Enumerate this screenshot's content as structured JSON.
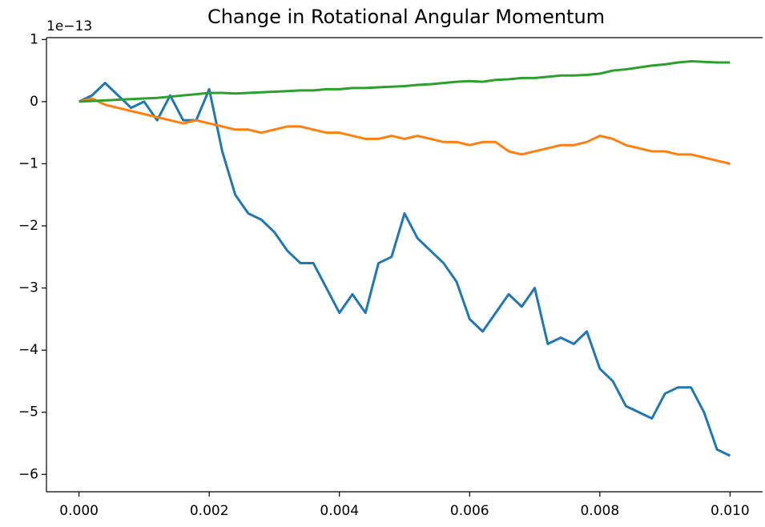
{
  "chart_data": {
    "type": "line",
    "title": "Change in Rotational Angular Momentum",
    "offset_text": "1e−13",
    "x": [
      0,
      0.0002,
      0.0004,
      0.0006,
      0.0008,
      0.001,
      0.0012,
      0.0014,
      0.0016,
      0.0018,
      0.002,
      0.0022,
      0.0024,
      0.0026,
      0.0028,
      0.003,
      0.0032,
      0.0034,
      0.0036,
      0.0038,
      0.004,
      0.0042,
      0.0044,
      0.0046,
      0.0048,
      0.005,
      0.0052,
      0.0054,
      0.0056,
      0.0058,
      0.006,
      0.0062,
      0.0064,
      0.0066,
      0.0068,
      0.007,
      0.0072,
      0.0074,
      0.0076,
      0.0078,
      0.008,
      0.0082,
      0.0084,
      0.0086,
      0.0088,
      0.009,
      0.0092,
      0.0094,
      0.0096,
      0.0098,
      0.01
    ],
    "series": [
      {
        "color": "#1f77b4",
        "values": [
          0,
          0.1,
          0.3,
          0.1,
          -0.1,
          0,
          -0.3,
          0.1,
          -0.3,
          -0.3,
          0.2,
          -0.8,
          -1.5,
          -1.8,
          -1.9,
          -2.1,
          -2.4,
          -2.6,
          -2.6,
          -3.0,
          -3.4,
          -3.1,
          -3.4,
          -2.6,
          -2.5,
          -1.8,
          -2.2,
          -2.4,
          -2.6,
          -2.9,
          -3.5,
          -3.7,
          -3.4,
          -3.1,
          -3.3,
          -3.0,
          -3.9,
          -3.8,
          -3.9,
          -3.7,
          -4.3,
          -4.5,
          -4.9,
          -5.0,
          -5.1,
          -4.7,
          -4.6,
          -4.6,
          -5.0,
          -5.6,
          -5.7
        ]
      },
      {
        "color": "#ff7f0e",
        "values": [
          0,
          0.05,
          -0.05,
          -0.1,
          -0.15,
          -0.2,
          -0.25,
          -0.3,
          -0.35,
          -0.3,
          -0.35,
          -0.4,
          -0.45,
          -0.45,
          -0.5,
          -0.45,
          -0.4,
          -0.4,
          -0.45,
          -0.5,
          -0.5,
          -0.55,
          -0.6,
          -0.6,
          -0.55,
          -0.6,
          -0.55,
          -0.6,
          -0.65,
          -0.65,
          -0.7,
          -0.65,
          -0.65,
          -0.8,
          -0.85,
          -0.8,
          -0.75,
          -0.7,
          -0.7,
          -0.65,
          -0.55,
          -0.6,
          -0.7,
          -0.75,
          -0.8,
          -0.8,
          -0.85,
          -0.85,
          -0.9,
          -0.95,
          -1.0
        ]
      },
      {
        "color": "#2ca02c",
        "values": [
          0,
          0.01,
          0.02,
          0.03,
          0.04,
          0.05,
          0.06,
          0.08,
          0.1,
          0.12,
          0.14,
          0.14,
          0.13,
          0.14,
          0.15,
          0.16,
          0.17,
          0.18,
          0.18,
          0.2,
          0.2,
          0.22,
          0.22,
          0.23,
          0.24,
          0.25,
          0.27,
          0.28,
          0.3,
          0.32,
          0.33,
          0.32,
          0.35,
          0.36,
          0.38,
          0.38,
          0.4,
          0.42,
          0.42,
          0.43,
          0.45,
          0.5,
          0.52,
          0.55,
          0.58,
          0.6,
          0.63,
          0.65,
          0.64,
          0.63,
          0.63
        ]
      }
    ],
    "xlim": [
      -0.0005,
      0.0105
    ],
    "ylim": [
      -6.28,
      1.03
    ],
    "xticks": [
      {
        "value": 0,
        "label": "0.000"
      },
      {
        "value": 0.002,
        "label": "0.002"
      },
      {
        "value": 0.004,
        "label": "0.004"
      },
      {
        "value": 0.006,
        "label": "0.006"
      },
      {
        "value": 0.008,
        "label": "0.008"
      },
      {
        "value": 0.01,
        "label": "0.010"
      }
    ],
    "yticks": [
      {
        "value": -6,
        "label": "−6"
      },
      {
        "value": -5,
        "label": "−5"
      },
      {
        "value": -4,
        "label": "−4"
      },
      {
        "value": -3,
        "label": "−3"
      },
      {
        "value": -2,
        "label": "−2"
      },
      {
        "value": -1,
        "label": "−1"
      },
      0,
      1
    ]
  }
}
